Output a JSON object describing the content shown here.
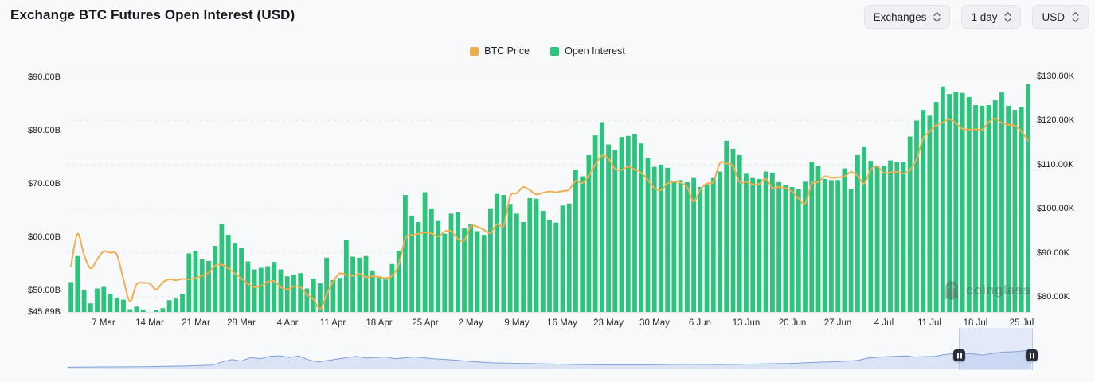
{
  "header": {
    "title": "Exchange BTC Futures Open Interest (USD)",
    "controls": [
      {
        "label": "Exchanges"
      },
      {
        "label": "1 day"
      },
      {
        "label": "USD"
      }
    ]
  },
  "legend": [
    {
      "label": "BTC Price",
      "color": "#ecae51"
    },
    {
      "label": "Open Interest",
      "color": "#2cc37c"
    }
  ],
  "watermark_text": "coinglass",
  "colors": {
    "background": "#f8f9fa",
    "bar_green": "#2cc37c",
    "price_orange": "#efae51",
    "gridline": "#e6e8ea",
    "axis_text": "#1b1d20",
    "navigator_fill": "#dbe4f5",
    "navigator_line": "#7fa0da",
    "brush_handle": "#2a2e3a"
  },
  "chart_data": {
    "type": "bar",
    "title": "Exchange BTC Futures Open Interest (USD)",
    "grid": "horizontal-dashed",
    "legend_position": "top-center",
    "left_axis": {
      "title": "Open Interest (USD billions)",
      "labels": [
        "$90.00B",
        "$80.00B",
        "$70.00B",
        "$60.00B",
        "$50.00B",
        "$45.89B"
      ],
      "values": [
        90,
        80,
        70,
        60,
        50,
        45.89
      ],
      "range": [
        45.89,
        91.4
      ]
    },
    "right_axis": {
      "title": "BTC Price (USD thousands)",
      "labels": [
        "$130.00K",
        "$120.00K",
        "$110.00K",
        "$100.00K",
        "$90.00K",
        "$80.00K"
      ],
      "values": [
        130,
        120,
        110,
        100,
        90,
        80
      ],
      "range": [
        76.6,
        131.4
      ]
    },
    "x_ticks": [
      {
        "label": "7 Mar",
        "index": 5
      },
      {
        "label": "14 Mar",
        "index": 12
      },
      {
        "label": "21 Mar",
        "index": 19
      },
      {
        "label": "28 Mar",
        "index": 26
      },
      {
        "label": "4 Apr",
        "index": 33
      },
      {
        "label": "11 Apr",
        "index": 40
      },
      {
        "label": "18 Apr",
        "index": 47
      },
      {
        "label": "25 Apr",
        "index": 54
      },
      {
        "label": "2 May",
        "index": 61
      },
      {
        "label": "9 May",
        "index": 68
      },
      {
        "label": "16 May",
        "index": 75
      },
      {
        "label": "23 May",
        "index": 82
      },
      {
        "label": "30 May",
        "index": 89
      },
      {
        "label": "6 Jun",
        "index": 96
      },
      {
        "label": "13 Jun",
        "index": 103
      },
      {
        "label": "20 Jun",
        "index": 110
      },
      {
        "label": "27 Jun",
        "index": 117
      },
      {
        "label": "4 Jul",
        "index": 124
      },
      {
        "label": "11 Jul",
        "index": 131
      },
      {
        "label": "18 Jul",
        "index": 138
      },
      {
        "label": "25 Jul",
        "index": 145
      }
    ],
    "series": [
      {
        "name": "Open Interest",
        "type": "bar",
        "axis": "left",
        "unit": "USD billions",
        "color": "#2cc37c",
        "values": [
          51.5,
          56.4,
          50.0,
          47.5,
          50.3,
          50.6,
          49.2,
          48.6,
          48.2,
          46.4,
          46.9,
          46.3,
          45.9,
          46.2,
          46.6,
          48.1,
          48.4,
          49.3,
          56.9,
          57.4,
          55.8,
          55.5,
          58.3,
          62.4,
          60.4,
          58.9,
          58.0,
          55.4,
          53.9,
          54.2,
          54.5,
          55.3,
          53.9,
          52.6,
          52.9,
          53.2,
          50.3,
          52.2,
          51.3,
          56.1,
          51.9,
          52.3,
          59.4,
          56.3,
          56.1,
          56.4,
          53.7,
          52.6,
          52.0,
          54.9,
          57.4,
          67.9,
          64.0,
          62.8,
          68.4,
          65.3,
          63.0,
          60.6,
          64.4,
          64.6,
          61.6,
          62.4,
          61.1,
          60.4,
          65.4,
          68.1,
          67.9,
          66.2,
          64.4,
          62.8,
          67.3,
          67.2,
          64.9,
          63.2,
          62.7,
          65.9,
          66.3,
          72.6,
          71.4,
          75.4,
          79.1,
          81.6,
          77.4,
          76.4,
          78.8,
          79.0,
          79.4,
          77.6,
          74.9,
          73.2,
          73.6,
          73.0,
          70.4,
          70.7,
          70.3,
          71.1,
          69.4,
          69.9,
          71.1,
          72.3,
          78.1,
          76.6,
          75.4,
          71.9,
          71.1,
          70.9,
          72.3,
          72.1,
          70.3,
          69.7,
          69.4,
          69.1,
          70.4,
          74.1,
          73.4,
          70.9,
          70.7,
          70.7,
          72.9,
          69.1,
          75.4,
          76.9,
          74.3,
          73.4,
          73.3,
          74.4,
          74.1,
          74.1,
          78.9,
          81.9,
          83.9,
          82.8,
          85.4,
          88.3,
          86.9,
          87.3,
          87.1,
          86.3,
          84.8,
          84.7,
          84.8,
          85.7,
          87.2,
          84.7,
          83.9,
          84.5,
          88.7
        ]
      },
      {
        "name": "BTC Price",
        "type": "line",
        "axis": "right",
        "unit": "USD thousands",
        "color": "#efae51",
        "values": [
          87.0,
          94.3,
          89.5,
          86.5,
          88.5,
          90.3,
          90.0,
          89.6,
          84.0,
          79.0,
          82.8,
          83.2,
          83.0,
          81.7,
          83.3,
          84.0,
          83.8,
          84.1,
          84.0,
          84.3,
          84.8,
          85.5,
          87.1,
          87.3,
          86.5,
          85.3,
          84.2,
          83.0,
          82.2,
          82.5,
          83.4,
          83.6,
          82.2,
          81.7,
          82.4,
          82.2,
          80.5,
          79.5,
          77.2,
          80.5,
          83.5,
          85.3,
          85.0,
          84.8,
          85.2,
          84.5,
          84.7,
          84.5,
          84.3,
          84.8,
          87.3,
          93.2,
          94.0,
          94.3,
          94.6,
          94.4,
          93.7,
          94.8,
          94.9,
          93.2,
          92.8,
          96.0,
          95.9,
          95.2,
          94.5,
          96.5,
          96.2,
          102.8,
          103.5,
          104.9,
          104.2,
          103.2,
          103.6,
          103.9,
          103.7,
          104.0,
          104.3,
          106.3,
          105.8,
          107.5,
          110.0,
          112.0,
          111.3,
          109.0,
          108.8,
          109.5,
          108.9,
          108.1,
          106.5,
          104.7,
          104.2,
          105.7,
          106.1,
          105.9,
          104.8,
          101.6,
          104.3,
          105.7,
          106.1,
          110.3,
          110.2,
          109.6,
          106.0,
          106.1,
          105.5,
          105.6,
          106.8,
          104.7,
          104.9,
          104.6,
          103.9,
          102.3,
          101.2,
          105.6,
          106.0,
          107.3,
          107.0,
          107.1,
          107.3,
          108.3,
          107.5,
          105.7,
          108.8,
          109.6,
          108.1,
          108.2,
          108.3,
          108.0,
          108.8,
          111.2,
          115.9,
          117.5,
          118.9,
          119.5,
          120.3,
          119.4,
          118.1,
          117.9,
          118.0,
          117.9,
          119.6,
          120.4,
          119.4,
          119.0,
          118.8,
          117.5,
          115.4
        ]
      }
    ]
  },
  "navigator": {
    "selection": {
      "start": 0.925,
      "end": 1.0
    },
    "profile": [
      [
        0,
        0.07
      ],
      [
        0.04,
        0.08
      ],
      [
        0.08,
        0.09
      ],
      [
        0.12,
        0.11
      ],
      [
        0.15,
        0.14
      ],
      [
        0.16,
        0.25
      ],
      [
        0.17,
        0.33
      ],
      [
        0.18,
        0.28
      ],
      [
        0.19,
        0.4
      ],
      [
        0.2,
        0.36
      ],
      [
        0.21,
        0.44
      ],
      [
        0.22,
        0.46
      ],
      [
        0.23,
        0.4
      ],
      [
        0.24,
        0.45
      ],
      [
        0.25,
        0.32
      ],
      [
        0.26,
        0.25
      ],
      [
        0.27,
        0.3
      ],
      [
        0.29,
        0.4
      ],
      [
        0.3,
        0.44
      ],
      [
        0.31,
        0.38
      ],
      [
        0.33,
        0.42
      ],
      [
        0.34,
        0.36
      ],
      [
        0.36,
        0.42
      ],
      [
        0.38,
        0.36
      ],
      [
        0.4,
        0.32
      ],
      [
        0.42,
        0.26
      ],
      [
        0.44,
        0.22
      ],
      [
        0.47,
        0.2
      ],
      [
        0.5,
        0.18
      ],
      [
        0.53,
        0.16
      ],
      [
        0.56,
        0.15
      ],
      [
        0.6,
        0.15
      ],
      [
        0.64,
        0.17
      ],
      [
        0.68,
        0.16
      ],
      [
        0.72,
        0.18
      ],
      [
        0.75,
        0.2
      ],
      [
        0.78,
        0.24
      ],
      [
        0.8,
        0.26
      ],
      [
        0.82,
        0.3
      ],
      [
        0.83,
        0.38
      ],
      [
        0.85,
        0.43
      ],
      [
        0.87,
        0.45
      ],
      [
        0.88,
        0.42
      ],
      [
        0.9,
        0.44
      ],
      [
        0.91,
        0.5
      ],
      [
        0.925,
        0.55
      ],
      [
        0.94,
        0.52
      ],
      [
        0.95,
        0.48
      ],
      [
        0.96,
        0.54
      ],
      [
        0.97,
        0.58
      ],
      [
        0.985,
        0.6
      ],
      [
        1,
        0.66
      ]
    ]
  }
}
